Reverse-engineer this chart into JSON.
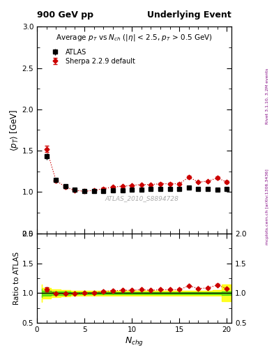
{
  "title_left": "900 GeV pp",
  "title_right": "Underlying Event",
  "plot_title": "Average $p_T$ vs $N_{ch}$ ($|\\eta|$ < 2.5, $p_T$ > 0.5 GeV)",
  "ylabel_main": "$\\langle p_T \\rangle$ [GeV]",
  "ylabel_ratio": "Ratio to ATLAS",
  "xlabel": "$N_{chg}$",
  "watermark": "ATLAS_2010_S8894728",
  "right_label_top": "Rivet 3.1.10, 3.2M events",
  "right_label_bot": "mcplots.cern.ch [arXiv:1306.3436]",
  "atlas_x": [
    1,
    2,
    3,
    4,
    5,
    6,
    7,
    8,
    9,
    10,
    11,
    12,
    13,
    14,
    15,
    16,
    17,
    18,
    19,
    20
  ],
  "atlas_y": [
    1.43,
    1.15,
    1.07,
    1.03,
    1.01,
    1.01,
    1.01,
    1.02,
    1.02,
    1.03,
    1.03,
    1.04,
    1.04,
    1.04,
    1.04,
    1.05,
    1.04,
    1.04,
    1.03,
    1.04
  ],
  "atlas_yerr": [
    0.04,
    0.025,
    0.018,
    0.012,
    0.01,
    0.01,
    0.01,
    0.01,
    0.01,
    0.01,
    0.01,
    0.01,
    0.01,
    0.01,
    0.01,
    0.01,
    0.01,
    0.01,
    0.01,
    0.015
  ],
  "sherpa_x": [
    1,
    2,
    3,
    4,
    5,
    6,
    7,
    8,
    9,
    10,
    11,
    12,
    13,
    14,
    15,
    16,
    17,
    18,
    19,
    20
  ],
  "sherpa_y": [
    1.52,
    1.14,
    1.06,
    1.02,
    1.01,
    1.02,
    1.04,
    1.06,
    1.07,
    1.08,
    1.09,
    1.09,
    1.1,
    1.1,
    1.1,
    1.18,
    1.12,
    1.13,
    1.17,
    1.12
  ],
  "sherpa_yerr": [
    0.04,
    0.02,
    0.015,
    0.012,
    0.01,
    0.01,
    0.01,
    0.01,
    0.01,
    0.01,
    0.01,
    0.01,
    0.01,
    0.01,
    0.01,
    0.015,
    0.01,
    0.01,
    0.015,
    0.015
  ],
  "ratio_x": [
    1,
    2,
    3,
    4,
    5,
    6,
    7,
    8,
    9,
    10,
    11,
    12,
    13,
    14,
    15,
    16,
    17,
    18,
    19,
    20
  ],
  "ratio_y": [
    1.063,
    0.991,
    0.991,
    0.99,
    1.0,
    1.01,
    1.03,
    1.039,
    1.049,
    1.049,
    1.058,
    1.048,
    1.058,
    1.058,
    1.058,
    1.124,
    1.077,
    1.087,
    1.136,
    1.077
  ],
  "ratio_yerr": [
    0.03,
    0.015,
    0.015,
    0.012,
    0.01,
    0.01,
    0.01,
    0.01,
    0.01,
    0.01,
    0.01,
    0.01,
    0.01,
    0.01,
    0.01,
    0.015,
    0.01,
    0.01,
    0.015,
    0.015
  ],
  "green_band_x": [
    0.5,
    1.5,
    2.5,
    3.5,
    4.5,
    5.5,
    6.5,
    7.5,
    8.5,
    9.5,
    10.5,
    11.5,
    12.5,
    13.5,
    14.5,
    15.5,
    16.5,
    17.5,
    18.5,
    19.5,
    20.5
  ],
  "green_band_lower": [
    0.93,
    0.96,
    0.97,
    0.975,
    0.978,
    0.979,
    0.98,
    0.981,
    0.982,
    0.982,
    0.983,
    0.983,
    0.983,
    0.983,
    0.983,
    0.982,
    0.981,
    0.98,
    0.979,
    0.978,
    0.975
  ],
  "green_band_upper": [
    1.07,
    1.04,
    1.03,
    1.025,
    1.022,
    1.021,
    1.02,
    1.019,
    1.018,
    1.018,
    1.017,
    1.017,
    1.017,
    1.017,
    1.017,
    1.018,
    1.019,
    1.02,
    1.021,
    1.022,
    1.025
  ],
  "yellow_band_lower": [
    0.85,
    0.91,
    0.94,
    0.95,
    0.955,
    0.957,
    0.959,
    0.961,
    0.962,
    0.963,
    0.963,
    0.963,
    0.963,
    0.963,
    0.963,
    0.962,
    0.96,
    0.958,
    0.956,
    0.954,
    0.86
  ],
  "yellow_band_upper": [
    1.15,
    1.09,
    1.06,
    1.05,
    1.045,
    1.043,
    1.041,
    1.039,
    1.038,
    1.037,
    1.037,
    1.037,
    1.037,
    1.037,
    1.037,
    1.038,
    1.04,
    1.042,
    1.044,
    1.046,
    1.14
  ],
  "ylim_main": [
    0.5,
    3.0
  ],
  "ylim_ratio": [
    0.5,
    2.0
  ],
  "xlim": [
    0,
    20.5
  ],
  "xticks": [
    0,
    5,
    10,
    15,
    20
  ],
  "yticks_main": [
    0.5,
    1.0,
    1.5,
    2.0,
    2.5,
    3.0
  ],
  "yticks_ratio": [
    0.5,
    1.0,
    1.5,
    2.0
  ],
  "atlas_color": "#000000",
  "sherpa_color": "#cc0000",
  "background_color": "#ffffff",
  "right_label_color": "#800080"
}
